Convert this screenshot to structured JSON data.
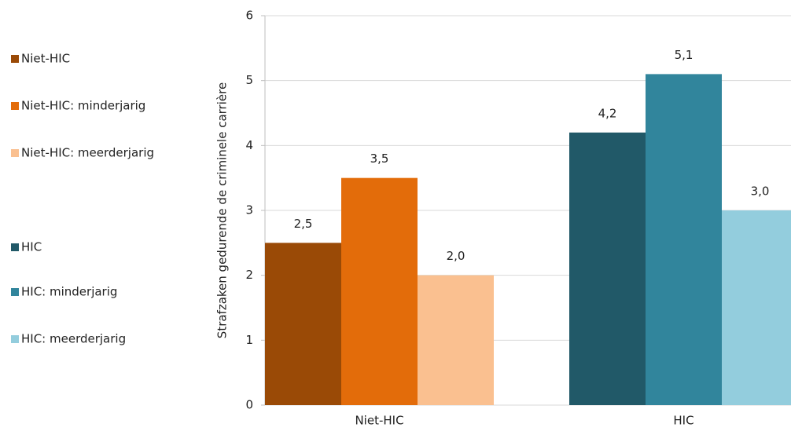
{
  "chart_data": {
    "type": "bar",
    "y_label": "Strafzaken gedurende de criminele carrière",
    "categories": [
      "Niet-HIC",
      "HIC"
    ],
    "series": [
      {
        "name": "Niet-HIC",
        "color": "#9a4a06",
        "values": [
          2.5,
          null
        ],
        "value_labels": [
          "2,5",
          null
        ]
      },
      {
        "name": "Niet-HIC: minderjarig",
        "color": "#e36c0a",
        "values": [
          3.5,
          null
        ],
        "value_labels": [
          "3,5",
          null
        ]
      },
      {
        "name": "Niet-HIC: meerderjarig",
        "color": "#fac090",
        "values": [
          2.0,
          null
        ],
        "value_labels": [
          "2,0",
          null
        ]
      },
      {
        "name": "HIC",
        "color": "#215968",
        "values": [
          null,
          4.2
        ],
        "value_labels": [
          null,
          "4,2"
        ]
      },
      {
        "name": "HIC: minderjarig",
        "color": "#31859c",
        "values": [
          null,
          5.1
        ],
        "value_labels": [
          null,
          "5,1"
        ]
      },
      {
        "name": "HIC: meerderjarig",
        "color": "#93cddd",
        "values": [
          null,
          3.0
        ],
        "value_labels": [
          null,
          "3,0"
        ]
      }
    ],
    "ylim": [
      0,
      6
    ],
    "yticks": [
      0,
      1,
      2,
      3,
      4,
      5,
      6
    ],
    "grid": true,
    "legend": "left"
  }
}
